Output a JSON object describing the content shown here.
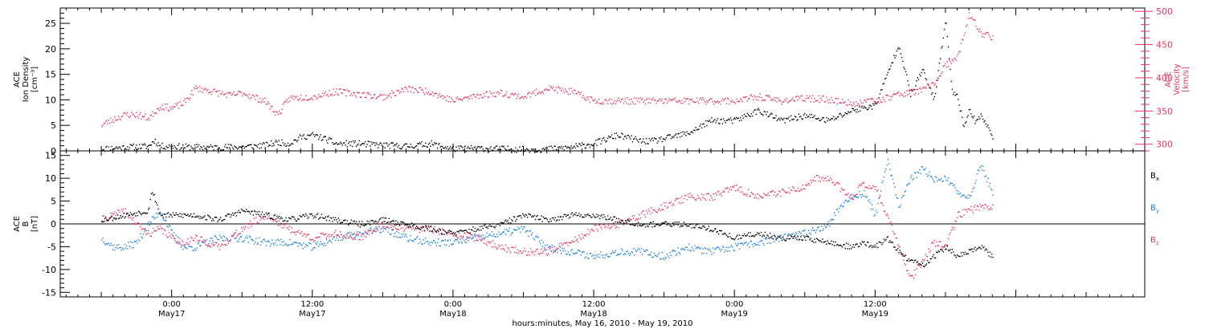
{
  "chart_data": [
    {
      "type": "scatter",
      "ylabel_lines": [
        "ACE",
        "Ion Density",
        "[cm⁻³]"
      ],
      "ylim": [
        0,
        28
      ],
      "yticks": [
        0,
        5,
        10,
        15,
        20,
        25
      ],
      "y2label_lines": [
        "ACE",
        "Velocity",
        "[km/s]"
      ],
      "y2lim": [
        290,
        505
      ],
      "y2ticks": [
        300,
        350,
        400,
        450,
        500
      ],
      "series": [
        {
          "color": "#000000",
          "axis": "left",
          "x": [
            -6,
            -4,
            -2,
            -1.5,
            -1,
            0,
            2,
            4,
            6,
            8,
            9,
            10,
            11,
            12,
            13,
            14,
            16,
            18,
            20,
            22,
            24,
            26,
            28,
            30,
            32,
            34,
            36,
            38,
            40,
            41,
            42,
            43,
            44,
            46,
            48,
            50,
            52,
            54,
            56,
            58,
            60,
            61,
            62,
            63,
            64,
            65,
            66,
            66.5,
            67,
            67.5,
            68,
            68.5,
            69,
            70
          ],
          "y": [
            0.5,
            0.8,
            1,
            2.2,
            1,
            1,
            0.8,
            0.8,
            0.9,
            1.2,
            1.8,
            1.5,
            2.8,
            3.2,
            2.5,
            1.5,
            1.5,
            1.2,
            1,
            1.5,
            0.5,
            0.6,
            0.5,
            0.4,
            0.4,
            0.8,
            1.5,
            3.2,
            2,
            2,
            2.5,
            3,
            3.5,
            6,
            6,
            8,
            6,
            7,
            6,
            8,
            9,
            15,
            21,
            11,
            16,
            10,
            26,
            12,
            11,
            5,
            8,
            6,
            7,
            3
          ]
        },
        {
          "color": "#e8355f",
          "axis": "right",
          "x": [
            -6,
            -5,
            -4,
            -3,
            -2,
            -1,
            0,
            1,
            2,
            3,
            4,
            5,
            6,
            8,
            9,
            10,
            12,
            14,
            16,
            18,
            20,
            22,
            24,
            26,
            28,
            30,
            32,
            34,
            36,
            38,
            40,
            42,
            44,
            46,
            48,
            50,
            52,
            54,
            56,
            58,
            60,
            62,
            64,
            65,
            66,
            67,
            68,
            69,
            70
          ],
          "y": [
            330,
            338,
            345,
            345,
            340,
            358,
            355,
            362,
            385,
            382,
            378,
            374,
            378,
            365,
            345,
            370,
            372,
            380,
            376,
            372,
            384,
            380,
            366,
            374,
            378,
            372,
            385,
            380,
            366,
            366,
            366,
            366,
            366,
            366,
            366,
            372,
            366,
            370,
            368,
            362,
            366,
            376,
            382,
            392,
            420,
            430,
            496,
            468,
            462
          ]
        }
      ]
    },
    {
      "type": "scatter",
      "ylabel_lines": [
        "ACE",
        "B",
        "[nT]"
      ],
      "ylim": [
        -16,
        16
      ],
      "yticks": [
        -15,
        -10,
        -5,
        0,
        5,
        10,
        15
      ],
      "xlabel": "hours:minutes, May 16, 2010 - May 19, 2010",
      "xlim": [
        -9.5,
        83
      ],
      "xticks": [
        {
          "x": 0,
          "time": "0:00",
          "date": "May17"
        },
        {
          "x": 12,
          "time": "12:00",
          "date": "May17"
        },
        {
          "x": 24,
          "time": "0:00",
          "date": "May18"
        },
        {
          "x": 36,
          "time": "12:00",
          "date": "May18"
        },
        {
          "x": 48,
          "time": "0:00",
          "date": "May19"
        },
        {
          "x": 60,
          "time": "12:00",
          "date": "May19"
        }
      ],
      "series": [
        {
          "name": "Bx",
          "label_main": "B",
          "label_sub": "x",
          "color": "#000000",
          "x": [
            -6,
            -4,
            -2,
            -1.8,
            -1.5,
            -1,
            0,
            2,
            4,
            6,
            8,
            10,
            12,
            14,
            16,
            18,
            20,
            22,
            24,
            26,
            28,
            30,
            32,
            34,
            36,
            38,
            40,
            42,
            44,
            46,
            48,
            50,
            52,
            54,
            56,
            58,
            59,
            60,
            61,
            62,
            63,
            64,
            65,
            66,
            67,
            68,
            69,
            70
          ],
          "y": [
            1,
            2,
            3,
            7,
            6,
            2,
            2,
            2,
            1,
            3,
            2,
            1,
            2,
            1,
            0,
            1,
            0,
            -1,
            -2,
            -1,
            0,
            2,
            1,
            2,
            2,
            1,
            0,
            0,
            0,
            -1,
            -3,
            -2,
            -3,
            -3,
            -4,
            -5,
            -4,
            -5,
            -3,
            -6,
            -8,
            -9,
            -7,
            -5,
            -7,
            -6,
            -5,
            -7
          ]
        },
        {
          "name": "By",
          "label_main": "B",
          "label_sub": "y",
          "color": "#1b7fdc",
          "x": [
            -6,
            -5,
            -4,
            -3,
            -2,
            -1,
            0,
            1,
            2,
            4,
            6,
            8,
            10,
            12,
            14,
            16,
            18,
            20,
            22,
            24,
            26,
            28,
            30,
            32,
            34,
            36,
            38,
            40,
            42,
            44,
            46,
            48,
            50,
            52,
            54,
            56,
            57,
            58,
            59,
            60,
            61,
            62,
            63,
            64,
            65,
            66,
            67,
            68,
            69,
            70
          ],
          "y": [
            -3,
            -5,
            -5,
            -4,
            0,
            3,
            -2,
            -5,
            -5,
            -3,
            -3,
            -4,
            -4,
            -5,
            -3,
            -2,
            -1,
            -3,
            -4,
            -4,
            -3,
            -2,
            -1,
            -5,
            -6,
            -7,
            -6,
            -6,
            -7,
            -5,
            -6,
            -5,
            -4,
            -3,
            -2,
            0,
            4,
            6,
            7,
            2,
            14,
            4,
            10,
            12,
            10,
            10,
            7,
            6,
            13,
            7
          ]
        },
        {
          "name": "Bz",
          "label_main": "B",
          "label_sub": "z",
          "color": "#e8355f",
          "x": [
            -6,
            -5,
            -4,
            -3,
            -2,
            -1,
            0,
            1,
            2,
            4,
            6,
            8,
            10,
            12,
            14,
            16,
            18,
            20,
            22,
            24,
            26,
            28,
            30,
            32,
            34,
            36,
            38,
            40,
            42,
            44,
            46,
            48,
            50,
            52,
            54,
            55,
            56,
            57,
            58,
            59,
            60,
            61,
            62,
            63,
            64,
            65,
            66,
            67,
            68,
            69,
            70
          ],
          "y": [
            1,
            2,
            3,
            0,
            -2,
            -1,
            -3,
            -4,
            -3,
            -5,
            -1,
            2,
            -1,
            -3,
            -2,
            -3,
            0,
            -1,
            -1,
            -2,
            -3,
            -5,
            -6,
            -6,
            -4,
            -1,
            0,
            2,
            4,
            6,
            6,
            8,
            6,
            7,
            8,
            10,
            10,
            8,
            6,
            9,
            8,
            2,
            -5,
            -12,
            -8,
            -4,
            -5,
            2,
            3,
            4,
            4
          ]
        }
      ]
    }
  ]
}
